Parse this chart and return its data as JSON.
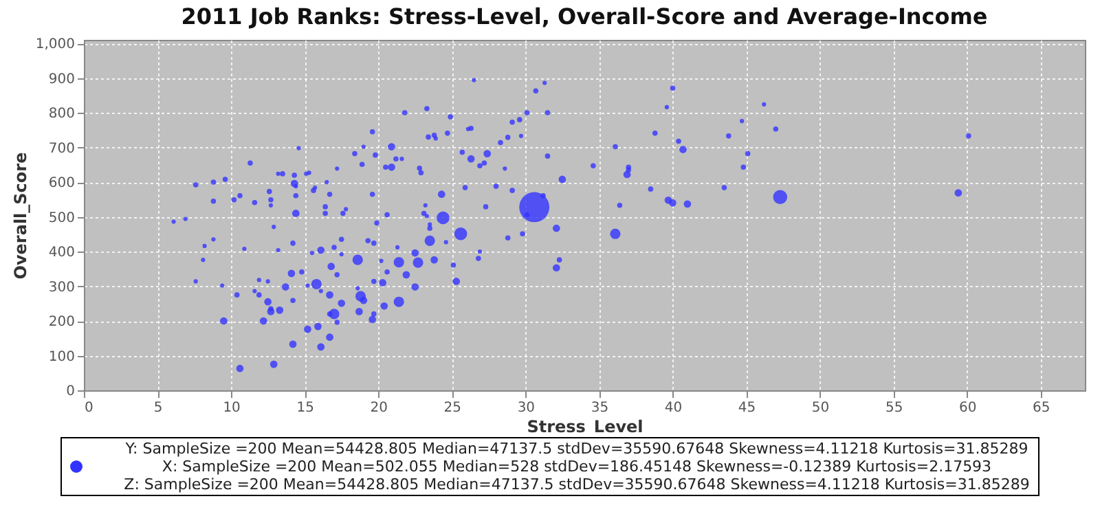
{
  "chart_data": {
    "type": "bubble",
    "title": "2011 Job Ranks: Stress-Level, Overall-Score and Average-Income",
    "xlabel": "Stress_Level",
    "ylabel": "Overall_Score",
    "xlim": [
      0,
      68
    ],
    "xticks": [
      0,
      5,
      10,
      15,
      20,
      25,
      30,
      35,
      40,
      45,
      50,
      55,
      60,
      65
    ],
    "ylim": [
      0,
      1010
    ],
    "yticks": [
      0,
      {
        "value": 100,
        "label": "100"
      },
      200,
      300,
      400,
      500,
      600,
      700,
      800,
      900,
      {
        "value": 1000,
        "label": "1,000"
      }
    ],
    "grid": true,
    "marker": "circle",
    "x": [
      23.3,
      26.5,
      31.3,
      30.7,
      24.9,
      24.7,
      23.4,
      23.8,
      23.9,
      26.1,
      26.3,
      29.1,
      29.6,
      30.1,
      31.5,
      28.8,
      29.7,
      28.3,
      25.7,
      27.4,
      26.3,
      27.2,
      26.9,
      28.6,
      31.5,
      22.9,
      34.6,
      36.1,
      37.0,
      37.0,
      36.9,
      38.8,
      39.6,
      40.0,
      40.4,
      40.7,
      43.8,
      44.7,
      45.1,
      44.8,
      43.5,
      38.5,
      36.4,
      39.7,
      40.0,
      41.0,
      32.5,
      29.1,
      28.0,
      25.9,
      24.3,
      23.2,
      27.3,
      30.6,
      31.2,
      24.4,
      23.5,
      23.3,
      23.5,
      23.5,
      25.6,
      24.6,
      22.5,
      22.7,
      23.8,
      25.1,
      25.3,
      22.5,
      26.9,
      26.8,
      28.8,
      29.8,
      30.1,
      32.1,
      32.3,
      32.1,
      36.1,
      46.2,
      47.0,
      47.3,
      59.4,
      60.1,
      21.8,
      19.6,
      14.6,
      19.0,
      20.9,
      18.4,
      19.8,
      21.2,
      21.6,
      20.5,
      20.9,
      22.8,
      18.9,
      17.2,
      11.3,
      13.2,
      13.5,
      14.3,
      15.1,
      15.3,
      14.3,
      14.4,
      14.4,
      16.5,
      15.7,
      15.6,
      16.7,
      19.6,
      7.6,
      8.8,
      9.6,
      8.8,
      10.2,
      10.6,
      11.6,
      12.6,
      12.7,
      12.7,
      14.4,
      16.4,
      16.4,
      17.6,
      17.8,
      20.6,
      23.1,
      6.1,
      6.9,
      19.9,
      12.9,
      8.8,
      8.2,
      8.1,
      10.9,
      13.2,
      14.2,
      16.1,
      15.5,
      17.0,
      17.5,
      17.5,
      18.6,
      19.3,
      19.7,
      21.3,
      20.2,
      21.4,
      20.6,
      21.9,
      16.8,
      17.2,
      14.8,
      14.1,
      11.9,
      12.5,
      7.6,
      9.4,
      13.7,
      15.2,
      15.8,
      16.1,
      16.7,
      18.6,
      18.8,
      19.0,
      19.7,
      20.3,
      21.4,
      20.4,
      19.7,
      19.6,
      18.7,
      17.5,
      17.0,
      16.7,
      17.2,
      14.2,
      13.3,
      12.5,
      12.7,
      12.7,
      11.6,
      11.9,
      10.4,
      12.2,
      9.5,
      15.2,
      15.9,
      16.7,
      16.1,
      14.2,
      12.9,
      10.6
    ],
    "series": [
      {
        "color": "#3333ff",
        "values": [
          812,
          894,
          886,
          863,
          788,
          741,
          730,
          735,
          726,
          753,
          755,
          773,
          780,
          800,
          800,
          729,
          733,
          714,
          686,
          682,
          667,
          655,
          647,
          639,
          675,
          627,
          647,
          702,
          643,
          635,
          622,
          741,
          816,
          871,
          718,
          694,
          733,
          776,
          682,
          643,
          584,
          580,
          533,
          548,
          540,
          537,
          608,
          576,
          588,
          584,
          565,
          533,
          529,
          528,
          561,
          497,
          431,
          502,
          478,
          467,
          451,
          427,
          396,
          368,
          376,
          361,
          314,
          298,
          400,
          380,
          439,
          451,
          506,
          467,
          376,
          353,
          451,
          824,
          753,
          557,
          569,
          733,
          800,
          745,
          698,
          702,
          702,
          682,
          678,
          667,
          667,
          643,
          643,
          640,
          651,
          639,
          655,
          624,
          624,
          620,
          624,
          627,
          596,
          588,
          561,
          600,
          584,
          576,
          565,
          565,
          592,
          600,
          608,
          545,
          549,
          561,
          541,
          573,
          549,
          533,
          510,
          529,
          510,
          510,
          522,
          506,
          510,
          486,
          494,
          482,
          471,
          435,
          416,
          376,
          408,
          404,
          424,
          404,
          396,
          412,
          435,
          392,
          376,
          431,
          424,
          412,
          373,
          369,
          341,
          333,
          357,
          333,
          341,
          337,
          318,
          314,
          314,
          302,
          298,
          302,
          306,
          286,
          275,
          294,
          271,
          259,
          314,
          310,
          255,
          243,
          220,
          204,
          227,
          251,
          220,
          220,
          196,
          259,
          231,
          255,
          235,
          227,
          286,
          275,
          275,
          200,
          200,
          176,
          184,
          153,
          125,
          133,
          75,
          63
        ],
        "sizes": [
          0.03,
          0.02,
          0.02,
          0.03,
          0.03,
          0.03,
          0.03,
          0.03,
          0.02,
          0.02,
          0.03,
          0.03,
          0.03,
          0.03,
          0.03,
          0.03,
          0.02,
          0.03,
          0.03,
          0.06,
          0.06,
          0.03,
          0.03,
          0.02,
          0.03,
          0.03,
          0.03,
          0.03,
          0.03,
          0.03,
          0.06,
          0.03,
          0.02,
          0.03,
          0.03,
          0.06,
          0.03,
          0.02,
          0.03,
          0.03,
          0.03,
          0.03,
          0.03,
          0.06,
          0.06,
          0.06,
          0.06,
          0.03,
          0.03,
          0.03,
          0.06,
          0.02,
          0.03,
          1,
          0.03,
          0.18,
          0.12,
          0.02,
          0.02,
          0.03,
          0.18,
          0.02,
          0.06,
          0.12,
          0.06,
          0.03,
          0.06,
          0.06,
          0.02,
          0.03,
          0.03,
          0.03,
          0.03,
          0.06,
          0.03,
          0.06,
          0.12,
          0.02,
          0.03,
          0.22,
          0.06,
          0.03,
          0.03,
          0.03,
          0.02,
          0.02,
          0.06,
          0.03,
          0.03,
          0.03,
          0.02,
          0.03,
          0.06,
          0.03,
          0.03,
          0.02,
          0.03,
          0.02,
          0.03,
          0.03,
          0.02,
          0.02,
          0.06,
          0.02,
          0.03,
          0.02,
          0.02,
          0.03,
          0.03,
          0.03,
          0.03,
          0.03,
          0.03,
          0.03,
          0.03,
          0.03,
          0.03,
          0.03,
          0.03,
          0.02,
          0.06,
          0.03,
          0.03,
          0.03,
          0.02,
          0.03,
          0.03,
          0.02,
          0.02,
          0.03,
          0.02,
          0.02,
          0.02,
          0.02,
          0.02,
          0.02,
          0.03,
          0.06,
          0.02,
          0.03,
          0.03,
          0.02,
          0.12,
          0.03,
          0.03,
          0.02,
          0.02,
          0.12,
          0.03,
          0.06,
          0.06,
          0.03,
          0.03,
          0.06,
          0.02,
          0.02,
          0.02,
          0.02,
          0.06,
          0.02,
          0.12,
          0.02,
          0.06,
          0.02,
          0.12,
          0.06,
          0.03,
          0.06,
          0.12,
          0.06,
          0.03,
          0.06,
          0.06,
          0.06,
          0.12,
          0.03,
          0.03,
          0.03,
          0.06,
          0.06,
          0.03,
          0.06,
          0.02,
          0.03,
          0.03,
          0.06,
          0.06,
          0.06,
          0.06,
          0.06,
          0.06,
          0.06,
          0.06,
          0.06
        ]
      }
    ],
    "annotations": [
      "Y: SampleSize =200 Mean=54428.805 Median=47137.5 stdDev=35590.67648 Skewness=4.11218 Kurtosis=31.85289",
      "X: SampleSize =200 Mean=502.055 Median=528 stdDev=186.45148 Skewness=-0.12389 Kurtosis=2.17593",
      "Z: SampleSize =200 Mean=54428.805 Median=47137.5 stdDev=35590.67648 Skewness=4.11218 Kurtosis=31.85289"
    ]
  }
}
